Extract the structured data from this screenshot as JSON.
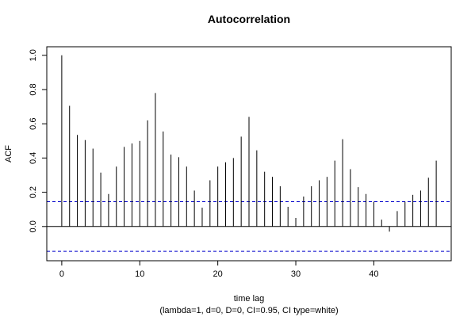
{
  "chart_data": {
    "type": "bar",
    "title": "Autocorrelation",
    "xlabel": "time lag",
    "ylabel": "ACF",
    "subtitle": "(lambda=1, d=0, D=0, CI=0.95, CI type=white)",
    "xlim": [
      -1.92,
      49.92
    ],
    "ylim": [
      -0.2,
      1.05
    ],
    "x_ticks": [
      0,
      10,
      20,
      30,
      40
    ],
    "y_ticks": [
      0.0,
      0.2,
      0.4,
      0.6,
      0.8,
      1.0
    ],
    "y_tick_labels": [
      "0.0",
      "0.2",
      "0.4",
      "0.6",
      "0.8",
      "1.0"
    ],
    "ci": 0.145,
    "colors": {
      "bars": "#000000",
      "ci": "#0000cc",
      "zero": "#000000"
    },
    "lags": [
      0,
      1,
      2,
      3,
      4,
      5,
      6,
      7,
      8,
      9,
      10,
      11,
      12,
      13,
      14,
      15,
      16,
      17,
      18,
      19,
      20,
      21,
      22,
      23,
      24,
      25,
      26,
      27,
      28,
      29,
      30,
      31,
      32,
      33,
      34,
      35,
      36,
      37,
      38,
      39,
      40,
      41,
      42,
      43,
      44,
      45,
      46,
      47,
      48
    ],
    "values": [
      1.0,
      0.705,
      0.535,
      0.505,
      0.455,
      0.315,
      0.19,
      0.35,
      0.465,
      0.485,
      0.5,
      0.62,
      0.78,
      0.555,
      0.42,
      0.405,
      0.35,
      0.21,
      0.11,
      0.27,
      0.35,
      0.375,
      0.4,
      0.525,
      0.64,
      0.445,
      0.32,
      0.29,
      0.235,
      0.115,
      0.05,
      0.175,
      0.235,
      0.27,
      0.29,
      0.385,
      0.51,
      0.335,
      0.23,
      0.19,
      0.145,
      0.04,
      -0.03,
      0.09,
      0.145,
      0.185,
      0.21,
      0.285,
      0.385
    ]
  }
}
